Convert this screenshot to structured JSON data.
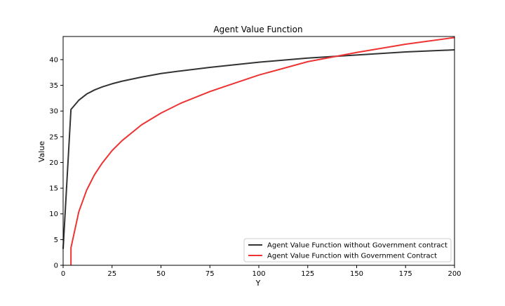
{
  "chart_data": {
    "type": "line",
    "title": "Agent Value Function",
    "xlabel": "Y",
    "ylabel": "Value",
    "xlim": [
      0,
      200
    ],
    "ylim": [
      0,
      44.5
    ],
    "xticks": [
      0,
      25,
      50,
      75,
      100,
      125,
      150,
      175,
      200
    ],
    "yticks": [
      0,
      5,
      10,
      15,
      20,
      25,
      30,
      35,
      40
    ],
    "grid": false,
    "legend_position": "lower-right",
    "series": [
      {
        "name": "Agent Value Function without Government contract",
        "color": "#333333",
        "x": [
          0,
          4,
          8,
          12,
          16,
          20,
          25,
          30,
          40,
          50,
          60,
          75,
          100,
          125,
          150,
          175,
          200
        ],
        "y": [
          3.2,
          30.3,
          32.1,
          33.3,
          34.1,
          34.7,
          35.3,
          35.8,
          36.6,
          37.3,
          37.8,
          38.5,
          39.5,
          40.3,
          40.9,
          41.5,
          41.9
        ]
      },
      {
        "name": "Agent Value Function with Government Contract",
        "color": "#ee3333",
        "x": [
          4,
          4.01,
          8,
          12,
          16,
          20,
          25,
          30,
          40,
          50,
          60,
          75,
          100,
          125,
          150,
          175,
          200
        ],
        "y": [
          0,
          3.4,
          10.4,
          14.6,
          17.6,
          19.9,
          22.3,
          24.2,
          27.3,
          29.6,
          31.5,
          33.8,
          37.0,
          39.6,
          41.4,
          43.0,
          44.3
        ]
      }
    ]
  }
}
